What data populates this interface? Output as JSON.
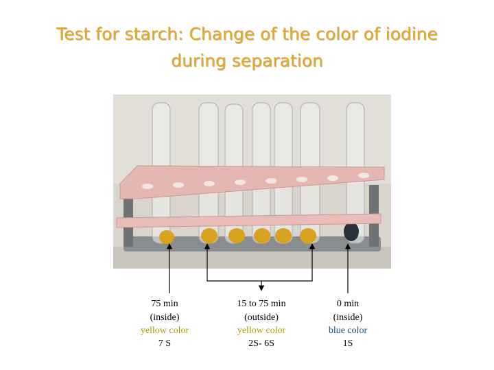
{
  "title_lines": [
    "Test for starch: Change of the color of iodine",
    "during separation"
  ],
  "labels": [
    {
      "lines": [
        "75 min",
        "(inside)",
        "yellow color",
        "7 S"
      ]
    },
    {
      "lines": [
        "15 to 75 min",
        "(outside)",
        "yellow color",
        "2S- 6S"
      ]
    },
    {
      "lines": [
        "0 min",
        "(inside)",
        "blue color",
        "1S"
      ]
    }
  ]
}
